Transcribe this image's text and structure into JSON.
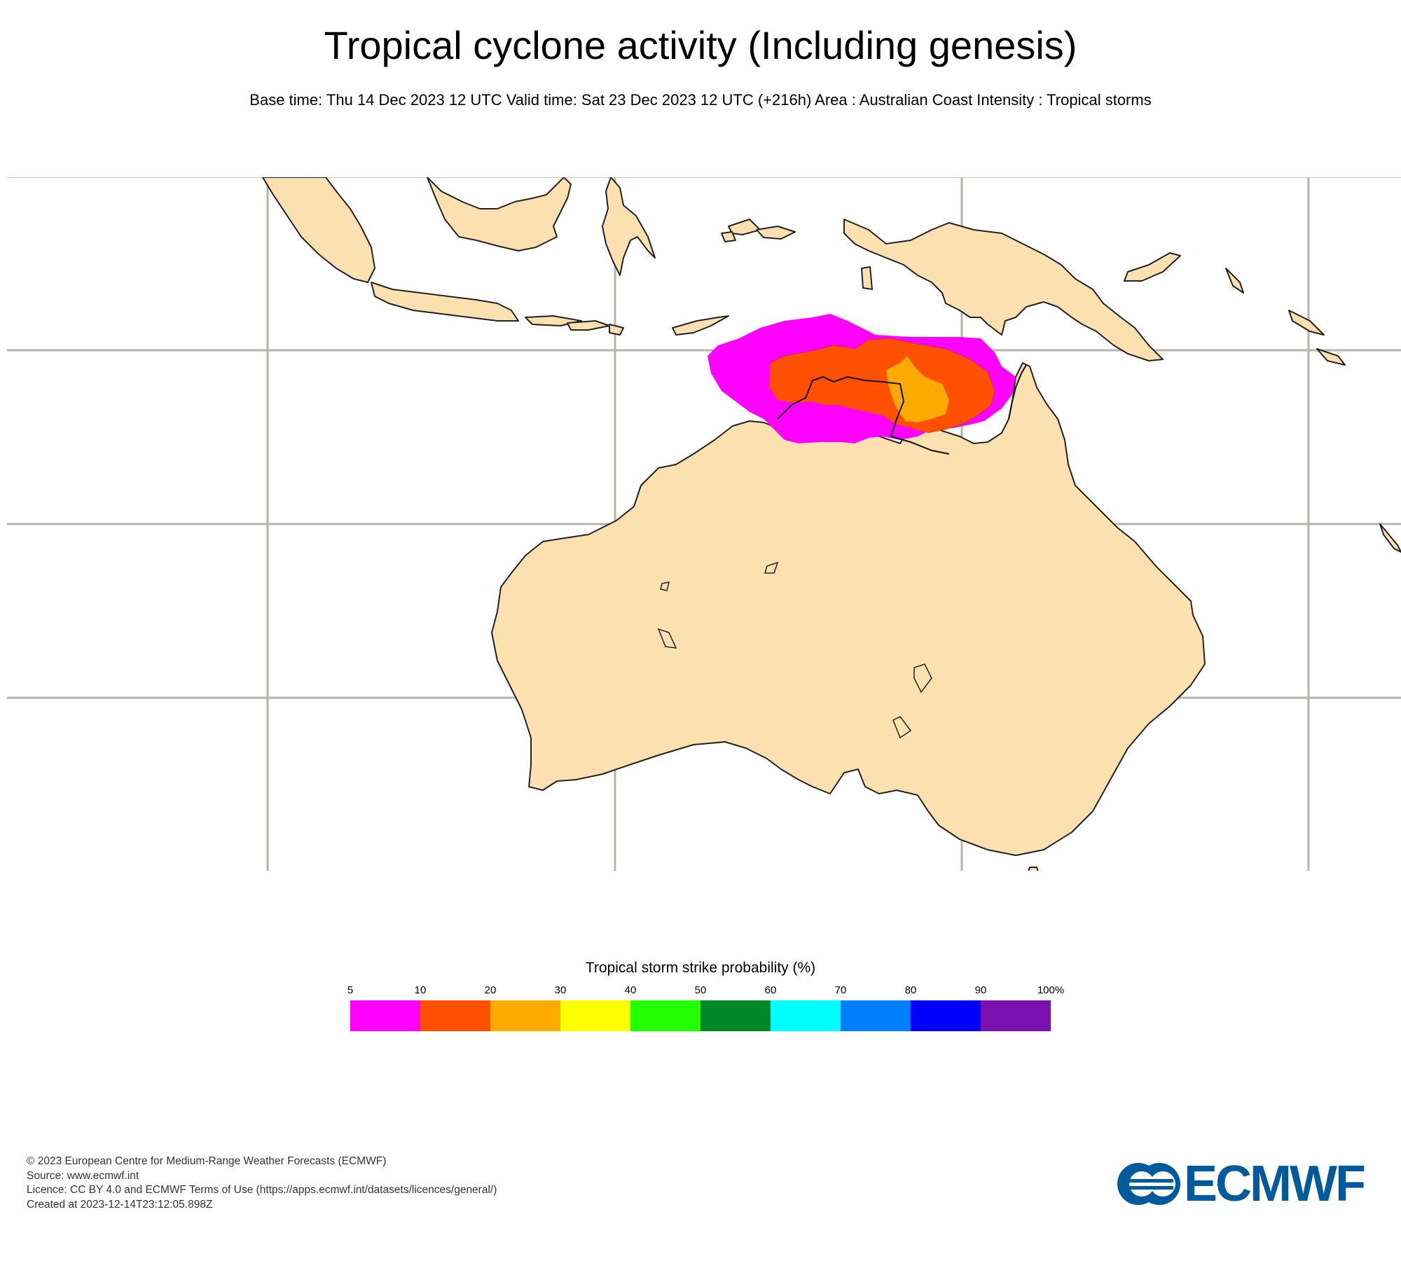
{
  "title": "Tropical cyclone activity (Including genesis)",
  "subtitle": "Base time: Thu 14 Dec 2023 12 UTC Valid time: Sat 23 Dec 2023 12 UTC (+216h) Area : Australian Coast Intensity : Tropical storms",
  "legend": {
    "title": "Tropical storm strike probability (%)",
    "ticks": [
      "5",
      "10",
      "20",
      "30",
      "40",
      "50",
      "60",
      "70",
      "80",
      "90",
      "100%"
    ],
    "colors": [
      "#ff00ff",
      "#ff5000",
      "#ffaa00",
      "#ffff00",
      "#22ff00",
      "#00882a",
      "#00ffff",
      "#0080ff",
      "#0000ff",
      "#7a10b0"
    ]
  },
  "map": {
    "region": "Australia and Maritime Continent",
    "land_color": "#fde0b0",
    "grid_color": "#b8b3a8",
    "probability_areas": [
      {
        "range": "5-10",
        "color": "#ff00ff"
      },
      {
        "range": "10-20",
        "color": "#ff5000"
      },
      {
        "range": "20-30",
        "color": "#ffaa00"
      }
    ]
  },
  "footer": {
    "line1": "© 2023 European Centre for Medium-Range Weather Forecasts (ECMWF)",
    "line2": "Source: www.ecmwf.int",
    "line3": "Licence: CC BY 4.0 and ECMWF Terms of Use (https://apps.ecmwf.int/datasets/licences/general/)",
    "line4": "Created at 2023-12-14T23:12:05.898Z"
  },
  "logo": {
    "text": "ECMWF",
    "color": "#005a9b"
  }
}
